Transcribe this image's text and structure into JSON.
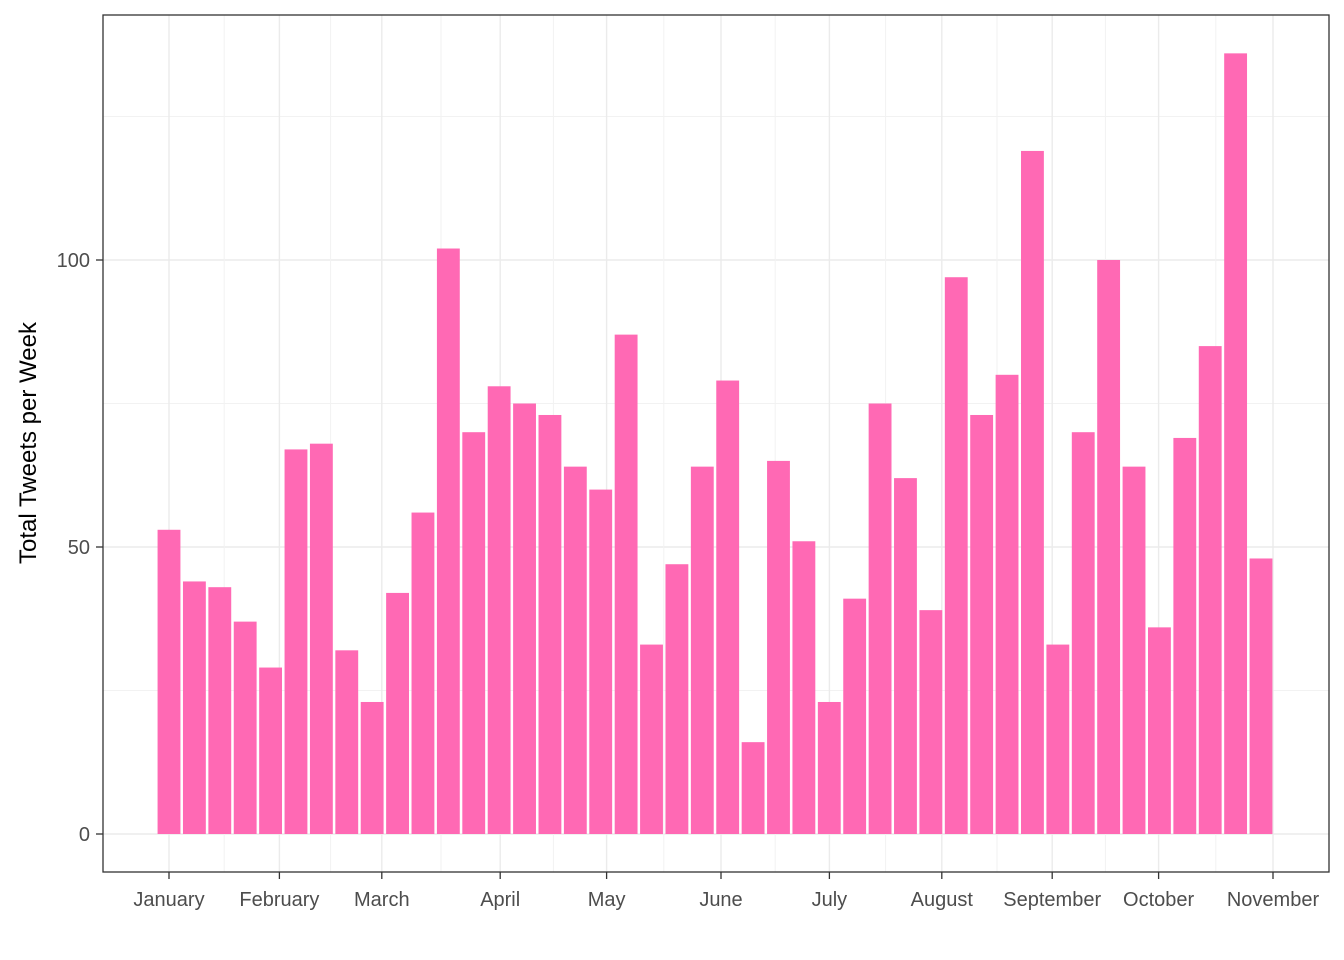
{
  "chart_data": {
    "type": "bar",
    "ylabel": "Total Tweets per Week",
    "xlabel": "",
    "title": "",
    "ylim": [
      -6,
      137
    ],
    "y_ticks": [
      0,
      50,
      100
    ],
    "y_minor_ticks": [
      25,
      75,
      125
    ],
    "x_ticks": [
      "January",
      "February",
      "March",
      "April",
      "May",
      "June",
      "July",
      "August",
      "September",
      "October",
      "November"
    ],
    "grid": true,
    "bar_color": "#FF69B4",
    "values": [
      53,
      44,
      43,
      37,
      29,
      67,
      68,
      32,
      23,
      42,
      56,
      102,
      70,
      78,
      75,
      73,
      64,
      60,
      87,
      33,
      47,
      64,
      79,
      16,
      65,
      51,
      23,
      41,
      75,
      62,
      39,
      97,
      73,
      80,
      119,
      33,
      70,
      100,
      64,
      36,
      69,
      85,
      136,
      48
    ]
  }
}
